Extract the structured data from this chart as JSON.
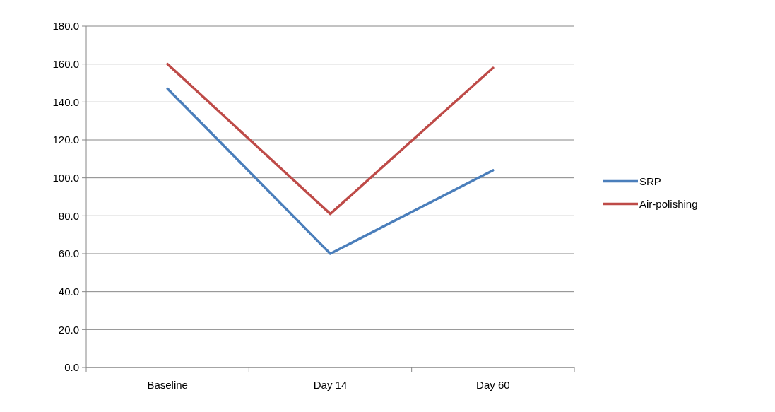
{
  "chart_data": {
    "type": "line",
    "categories": [
      "Baseline",
      "Day 14",
      "Day 60"
    ],
    "series": [
      {
        "name": "SRP",
        "color": "#4a7ebb",
        "values": [
          147,
          60,
          104
        ]
      },
      {
        "name": "Air-polishing",
        "color": "#be4b48",
        "values": [
          160,
          81,
          158
        ]
      }
    ],
    "ylim": [
      0,
      180
    ],
    "yticks": [
      {
        "value": 0,
        "label": "0.0"
      },
      {
        "value": 20,
        "label": "20.0"
      },
      {
        "value": 40,
        "label": "40.0"
      },
      {
        "value": 60,
        "label": "60.0"
      },
      {
        "value": 80,
        "label": "80.0"
      },
      {
        "value": 100,
        "label": "100.0"
      },
      {
        "value": 120,
        "label": "120.0"
      },
      {
        "value": 140,
        "label": "140.0"
      },
      {
        "value": 160,
        "label": "160.0"
      },
      {
        "value": 180,
        "label": "180.0"
      }
    ],
    "grid": "y",
    "legend": "right",
    "marker": "none",
    "line_style": "solid"
  }
}
